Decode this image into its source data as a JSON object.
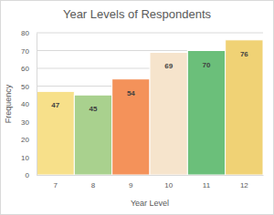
{
  "chart_data": {
    "type": "bar",
    "title": "Year Levels of Respondents",
    "x_label": "Year Level",
    "y_label": "Frequency",
    "categories": [
      "7",
      "8",
      "9",
      "10",
      "11",
      "12"
    ],
    "values": [
      47,
      45,
      54,
      69,
      70,
      76
    ],
    "colors": [
      "#f7e08a",
      "#a9d18e",
      "#f4925a",
      "#f6e4cc",
      "#6bbf7a",
      "#f0d275"
    ],
    "ylim": [
      0,
      80
    ],
    "yticks": [
      0,
      10,
      20,
      30,
      40,
      50,
      60,
      70,
      80
    ],
    "grid": true,
    "data_labels": true
  }
}
